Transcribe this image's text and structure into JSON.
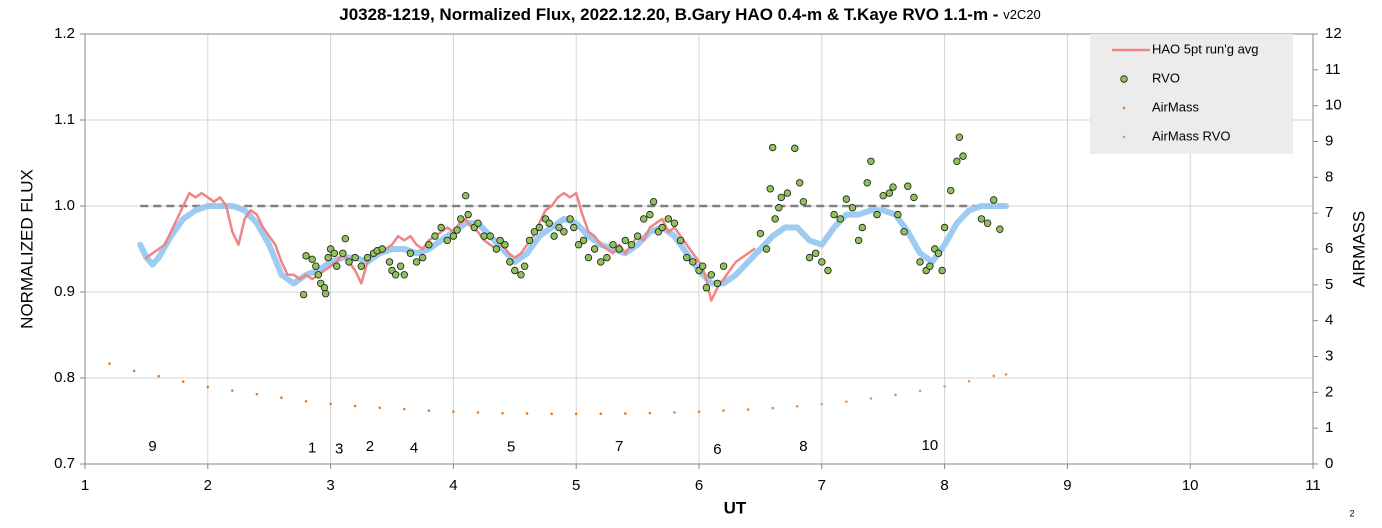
{
  "chart_data": {
    "type": "scatter",
    "title": "J0328-1219, Normalized Flux, 2022.12.20, B.Gary HAO 0.4-m & T.Kaye RVO 1.1-m -",
    "title_version": "v2C20",
    "xlabel": "UT",
    "ylabel": "NORMALIZED FLUX",
    "y2label": "AIRMASS",
    "footnote": "2",
    "xlim": [
      1,
      11
    ],
    "xticks": [
      1,
      2,
      3,
      4,
      5,
      6,
      7,
      8,
      9,
      10,
      11
    ],
    "ylim": [
      0.7,
      1.2
    ],
    "yticks": [
      0.7,
      0.8,
      0.9,
      {
        "value": 1.0,
        "label": "1.0"
      },
      1.1,
      1.2
    ],
    "y2lim": [
      0,
      12
    ],
    "y2ticks": [
      0,
      1,
      2,
      3,
      4,
      5,
      6,
      7,
      8,
      9,
      10,
      11,
      12
    ],
    "grid": true,
    "legend": "top-right",
    "reference_line": {
      "x": [
        1.45,
        8.5
      ],
      "y": 1.0,
      "color": "#808080"
    },
    "annotations": [
      {
        "text": "9",
        "x": 1.55,
        "y": 0.72
      },
      {
        "text": "1",
        "x": 2.85,
        "y": 0.718
      },
      {
        "text": "3",
        "x": 3.07,
        "y": 0.717
      },
      {
        "text": "2",
        "x": 3.32,
        "y": 0.72
      },
      {
        "text": "4",
        "x": 3.68,
        "y": 0.718
      },
      {
        "text": "5",
        "x": 4.47,
        "y": 0.719
      },
      {
        "text": "7",
        "x": 5.35,
        "y": 0.72
      },
      {
        "text": "6",
        "x": 6.15,
        "y": 0.716
      },
      {
        "text": "8",
        "x": 6.85,
        "y": 0.72
      },
      {
        "text": "10",
        "x": 7.88,
        "y": 0.721
      }
    ],
    "series": [
      {
        "style": "line",
        "color": "#99c8f0",
        "x": [
          1.45,
          1.5,
          1.55,
          1.6,
          1.7,
          1.8,
          1.9,
          2.0,
          2.1,
          2.2,
          2.3,
          2.4,
          2.5,
          2.6,
          2.7,
          2.8,
          2.9,
          3.0,
          3.1,
          3.2,
          3.3,
          3.4,
          3.5,
          3.6,
          3.7,
          3.8,
          3.9,
          4.0,
          4.1,
          4.2,
          4.3,
          4.4,
          4.5,
          4.6,
          4.7,
          4.8,
          4.9,
          5.0,
          5.1,
          5.2,
          5.3,
          5.4,
          5.5,
          5.6,
          5.7,
          5.8,
          5.9,
          6.0,
          6.1,
          6.2,
          6.3,
          6.4,
          6.5,
          6.6,
          6.7,
          6.8,
          6.9,
          7.0,
          7.1,
          7.2,
          7.3,
          7.4,
          7.5,
          7.6,
          7.7,
          7.8,
          7.9,
          8.0,
          8.1,
          8.2,
          8.3,
          8.4,
          8.5
        ],
        "values": [
          0.955,
          0.94,
          0.932,
          0.94,
          0.965,
          0.985,
          0.995,
          1.0,
          1.0,
          1.0,
          0.995,
          0.98,
          0.955,
          0.92,
          0.91,
          0.92,
          0.925,
          0.935,
          0.94,
          0.94,
          0.935,
          0.945,
          0.95,
          0.95,
          0.945,
          0.95,
          0.96,
          0.97,
          0.98,
          0.98,
          0.965,
          0.95,
          0.935,
          0.945,
          0.965,
          0.975,
          0.985,
          0.98,
          0.965,
          0.955,
          0.95,
          0.945,
          0.955,
          0.97,
          0.975,
          0.965,
          0.945,
          0.925,
          0.91,
          0.91,
          0.92,
          0.935,
          0.95,
          0.965,
          0.975,
          0.975,
          0.96,
          0.955,
          0.975,
          0.99,
          0.99,
          0.995,
          0.995,
          0.99,
          0.97,
          0.945,
          0.935,
          0.955,
          0.98,
          0.995,
          1.0,
          1.0,
          1.0
        ]
      },
      {
        "name": "HAO 5pt run'g avg",
        "style": "line",
        "color": "#f08585",
        "x": [
          1.5,
          1.55,
          1.6,
          1.65,
          1.7,
          1.75,
          1.8,
          1.85,
          1.9,
          1.95,
          2.0,
          2.05,
          2.1,
          2.15,
          2.2,
          2.25,
          2.3,
          2.35,
          2.4,
          2.45,
          2.5,
          2.55,
          2.6,
          2.65,
          2.7,
          2.75,
          2.8,
          2.85,
          2.9,
          2.95,
          3.0,
          3.05,
          3.1,
          3.15,
          3.2,
          3.25,
          3.3,
          3.35,
          3.4,
          3.45,
          3.5,
          3.55,
          3.6,
          3.65,
          3.7,
          3.75,
          3.8,
          3.85,
          3.9,
          3.95,
          4.0,
          4.05,
          4.1,
          4.15,
          4.2,
          4.25,
          4.3,
          4.35,
          4.4,
          4.45,
          4.5,
          4.55,
          4.6,
          4.65,
          4.7,
          4.75,
          4.8,
          4.85,
          4.9,
          4.95,
          5.0,
          5.05,
          5.1,
          5.15,
          5.2,
          5.25,
          5.3,
          5.35,
          5.4,
          5.45,
          5.5,
          5.55,
          5.6,
          5.65,
          5.7,
          5.75,
          5.8,
          5.85,
          5.9,
          5.95,
          6.0,
          6.05,
          6.1,
          6.15,
          6.2,
          6.25,
          6.3,
          6.35,
          6.4,
          6.45
        ],
        "values": [
          0.94,
          0.945,
          0.95,
          0.955,
          0.97,
          0.985,
          1.0,
          1.015,
          1.01,
          1.015,
          1.01,
          1.005,
          1.01,
          1.0,
          0.97,
          0.955,
          0.985,
          0.995,
          0.99,
          0.975,
          0.965,
          0.955,
          0.935,
          0.92,
          0.92,
          0.915,
          0.92,
          0.915,
          0.92,
          0.925,
          0.93,
          0.935,
          0.945,
          0.935,
          0.925,
          0.91,
          0.935,
          0.945,
          0.945,
          0.95,
          0.955,
          0.965,
          0.96,
          0.965,
          0.955,
          0.95,
          0.96,
          0.965,
          0.97,
          0.975,
          0.97,
          0.98,
          0.985,
          0.975,
          0.97,
          0.96,
          0.955,
          0.95,
          0.955,
          0.945,
          0.94,
          0.945,
          0.955,
          0.965,
          0.98,
          0.995,
          1.0,
          1.01,
          1.015,
          1.01,
          1.015,
          0.99,
          0.97,
          0.965,
          0.955,
          0.95,
          0.945,
          0.955,
          0.945,
          0.955,
          0.965,
          0.96,
          0.975,
          0.98,
          0.985,
          0.97,
          0.975,
          0.965,
          0.955,
          0.945,
          0.935,
          0.92,
          0.89,
          0.905,
          0.915,
          0.925,
          0.935,
          0.94,
          0.945,
          0.95
        ]
      },
      {
        "name": "RVO",
        "style": "markers",
        "color": "#8fc25a",
        "x": [
          2.78,
          2.8,
          2.85,
          2.88,
          2.9,
          2.92,
          2.95,
          2.96,
          2.98,
          3.0,
          3.03,
          3.05,
          3.1,
          3.12,
          3.15,
          3.2,
          3.25,
          3.3,
          3.35,
          3.38,
          3.42,
          3.48,
          3.5,
          3.53,
          3.57,
          3.6,
          3.65,
          3.7,
          3.75,
          3.8,
          3.85,
          3.9,
          3.95,
          4.0,
          4.03,
          4.06,
          4.1,
          4.12,
          4.17,
          4.2,
          4.25,
          4.3,
          4.35,
          4.38,
          4.42,
          4.46,
          4.5,
          4.55,
          4.58,
          4.62,
          4.66,
          4.7,
          4.75,
          4.78,
          4.82,
          4.86,
          4.9,
          4.95,
          4.98,
          5.02,
          5.06,
          5.1,
          5.15,
          5.2,
          5.25,
          5.3,
          5.35,
          5.4,
          5.45,
          5.5,
          5.55,
          5.6,
          5.63,
          5.67,
          5.7,
          5.75,
          5.8,
          5.85,
          5.9,
          5.95,
          6.0,
          6.03,
          6.06,
          6.1,
          6.15,
          6.2,
          6.5,
          6.55,
          6.58,
          6.6,
          6.62,
          6.65,
          6.67,
          6.72,
          6.78,
          6.82,
          6.85,
          6.9,
          6.95,
          7.0,
          7.05,
          7.1,
          7.15,
          7.2,
          7.25,
          7.3,
          7.33,
          7.37,
          7.4,
          7.45,
          7.5,
          7.55,
          7.58,
          7.62,
          7.67,
          7.7,
          7.75,
          7.8,
          7.85,
          7.88,
          7.92,
          7.95,
          7.98,
          8.0,
          8.05,
          8.1,
          8.12,
          8.15,
          8.3,
          8.35,
          8.4,
          8.45
        ],
        "values": [
          0.897,
          0.942,
          0.938,
          0.93,
          0.92,
          0.91,
          0.905,
          0.898,
          0.94,
          0.95,
          0.945,
          0.93,
          0.945,
          0.962,
          0.935,
          0.94,
          0.93,
          0.94,
          0.945,
          0.948,
          0.95,
          0.935,
          0.925,
          0.92,
          0.93,
          0.92,
          0.945,
          0.935,
          0.94,
          0.955,
          0.965,
          0.975,
          0.96,
          0.965,
          0.972,
          0.985,
          1.012,
          0.99,
          0.975,
          0.98,
          0.965,
          0.965,
          0.95,
          0.96,
          0.955,
          0.935,
          0.925,
          0.92,
          0.93,
          0.96,
          0.97,
          0.975,
          0.985,
          0.98,
          0.965,
          0.975,
          0.97,
          0.985,
          0.975,
          0.955,
          0.96,
          0.94,
          0.95,
          0.935,
          0.94,
          0.955,
          0.95,
          0.96,
          0.955,
          0.965,
          0.985,
          0.99,
          1.005,
          0.97,
          0.975,
          0.985,
          0.98,
          0.96,
          0.94,
          0.935,
          0.925,
          0.93,
          0.905,
          0.92,
          0.91,
          0.93,
          0.968,
          0.95,
          1.02,
          1.068,
          0.985,
          0.998,
          1.01,
          1.015,
          1.067,
          1.027,
          1.005,
          0.94,
          0.945,
          0.935,
          0.925,
          0.99,
          0.985,
          1.008,
          0.998,
          0.96,
          0.975,
          1.027,
          1.052,
          0.99,
          1.012,
          1.015,
          1.022,
          0.99,
          0.97,
          1.023,
          1.01,
          0.935,
          0.925,
          0.93,
          0.95,
          0.945,
          0.925,
          0.975,
          1.018,
          1.052,
          1.08,
          1.058,
          0.985,
          0.98,
          1.007,
          0.973
        ]
      },
      {
        "name": "AirMass",
        "style": "dots",
        "color": "#e07b28",
        "axis": "y2",
        "x": [
          1.2,
          1.4,
          1.6,
          1.8,
          2.0,
          2.2,
          2.4,
          2.6,
          2.8,
          3.0,
          3.2,
          3.4,
          3.6,
          3.8,
          4.0,
          4.2,
          4.4,
          4.6,
          4.8,
          5.0,
          5.2,
          5.4,
          5.6,
          5.8,
          6.0,
          6.2,
          6.4,
          6.6
        ],
        "values": [
          2.8,
          2.6,
          2.45,
          2.3,
          2.15,
          2.05,
          1.95,
          1.85,
          1.75,
          1.68,
          1.62,
          1.57,
          1.53,
          1.49,
          1.46,
          1.44,
          1.42,
          1.41,
          1.4,
          1.4,
          1.4,
          1.41,
          1.42,
          1.44,
          1.46,
          1.49,
          1.52,
          1.56
        ]
      },
      {
        "name": "AirMass RVO",
        "style": "dots",
        "color": "#e8964f",
        "axis": "y2",
        "x": [
          5.8,
          6.0,
          6.2,
          6.4,
          6.6,
          6.8,
          7.0,
          7.2,
          7.4,
          7.6,
          7.8,
          8.0,
          8.2,
          8.4,
          8.5
        ],
        "values": [
          1.44,
          1.46,
          1.49,
          1.52,
          1.56,
          1.61,
          1.67,
          1.74,
          1.83,
          1.93,
          2.04,
          2.17,
          2.31,
          2.46,
          2.5
        ]
      }
    ]
  }
}
